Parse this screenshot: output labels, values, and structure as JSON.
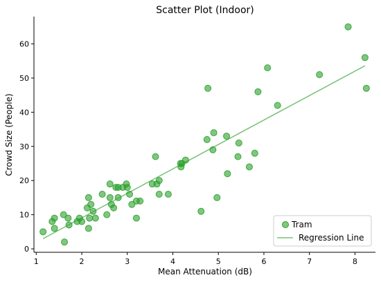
{
  "chart_data": {
    "type": "scatter",
    "title": "Scatter Plot (Indoor)",
    "xlabel": "Mean Attenuation (dB)",
    "ylabel": "Crowd Size (People)",
    "xlim": [
      0.95,
      8.45
    ],
    "ylim": [
      -1,
      68
    ],
    "x_ticks": [
      1,
      2,
      3,
      4,
      5,
      6,
      7,
      8
    ],
    "y_ticks": [
      0,
      10,
      20,
      30,
      40,
      50,
      60
    ],
    "grid": false,
    "legend_position": "lower-right",
    "series": [
      {
        "name": "Tram",
        "kind": "scatter",
        "color": "#2ca02c",
        "points": [
          [
            1.15,
            5
          ],
          [
            1.35,
            8
          ],
          [
            1.4,
            9
          ],
          [
            1.4,
            6
          ],
          [
            1.6,
            10
          ],
          [
            1.62,
            2
          ],
          [
            1.7,
            9
          ],
          [
            1.72,
            7
          ],
          [
            1.9,
            8
          ],
          [
            1.95,
            9
          ],
          [
            2.0,
            8
          ],
          [
            2.12,
            12
          ],
          [
            2.15,
            15
          ],
          [
            2.15,
            6
          ],
          [
            2.17,
            9
          ],
          [
            2.2,
            13
          ],
          [
            2.25,
            11
          ],
          [
            2.3,
            9
          ],
          [
            2.45,
            16
          ],
          [
            2.55,
            10
          ],
          [
            2.62,
            19
          ],
          [
            2.62,
            15
          ],
          [
            2.65,
            13
          ],
          [
            2.7,
            12
          ],
          [
            2.75,
            18
          ],
          [
            2.8,
            15
          ],
          [
            2.8,
            18
          ],
          [
            2.9,
            18
          ],
          [
            2.98,
            19
          ],
          [
            3.0,
            18
          ],
          [
            3.05,
            16
          ],
          [
            3.1,
            13
          ],
          [
            3.2,
            14
          ],
          [
            3.2,
            9
          ],
          [
            3.28,
            14
          ],
          [
            3.55,
            19
          ],
          [
            3.62,
            27
          ],
          [
            3.65,
            19
          ],
          [
            3.7,
            16
          ],
          [
            3.7,
            20
          ],
          [
            3.9,
            16
          ],
          [
            4.17,
            25
          ],
          [
            4.18,
            24
          ],
          [
            4.2,
            25
          ],
          [
            4.28,
            26
          ],
          [
            4.62,
            11
          ],
          [
            4.75,
            32
          ],
          [
            4.77,
            47
          ],
          [
            4.88,
            29
          ],
          [
            4.9,
            34
          ],
          [
            4.97,
            15
          ],
          [
            5.18,
            33
          ],
          [
            5.2,
            22
          ],
          [
            5.43,
            27
          ],
          [
            5.45,
            31
          ],
          [
            5.68,
            24
          ],
          [
            5.8,
            28
          ],
          [
            5.87,
            46
          ],
          [
            6.08,
            53
          ],
          [
            6.3,
            42
          ],
          [
            7.22,
            51
          ],
          [
            7.85,
            65
          ],
          [
            8.22,
            56
          ],
          [
            8.25,
            47
          ]
        ]
      },
      {
        "name": "Regression Line",
        "kind": "line",
        "color": "#2ca02c",
        "points": [
          [
            1.15,
            3.0
          ],
          [
            8.22,
            53.6
          ]
        ]
      }
    ]
  }
}
